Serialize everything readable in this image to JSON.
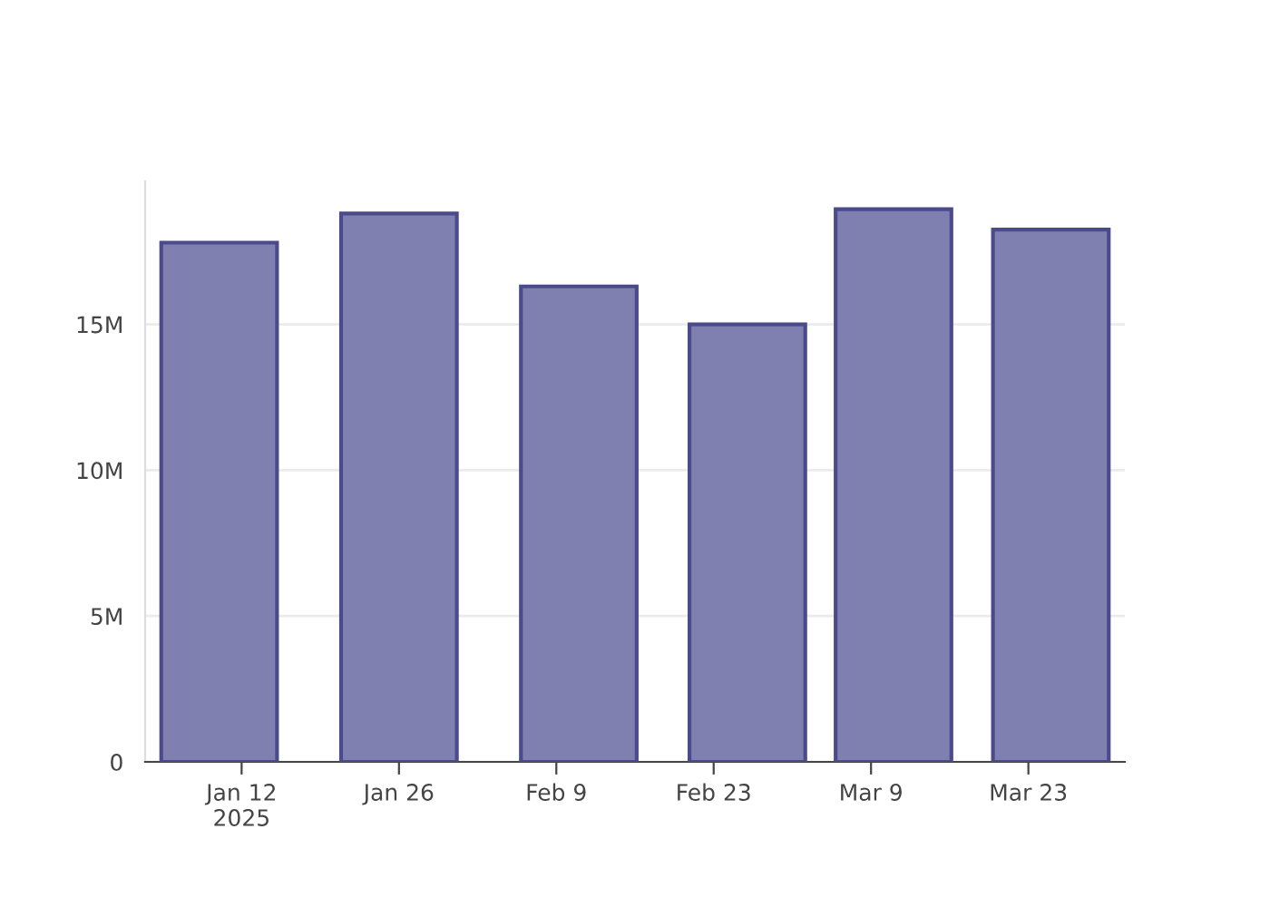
{
  "chart_data": {
    "type": "bar",
    "x": [
      "2025-01-10",
      "2025-01-26",
      "2025-02-11",
      "2025-02-26",
      "2025-03-11",
      "2025-03-25"
    ],
    "values": [
      17800000,
      18800000,
      16300000,
      15000000,
      18950000,
      18250000
    ],
    "color": "#7f7fb0",
    "xlim": [
      "2025-01-03T10:00",
      "2025-03-31T14:00"
    ],
    "xticks": [
      {
        "value": "2025-01-12",
        "label": "Jan 12\n2025"
      },
      {
        "value": "2025-01-26",
        "label": "Jan 26"
      },
      {
        "value": "2025-02-09",
        "label": "Feb 9"
      },
      {
        "value": "2025-02-23",
        "label": "Feb 23"
      },
      {
        "value": "2025-03-09",
        "label": "Mar 9"
      },
      {
        "value": "2025-03-23",
        "label": "Mar 23"
      }
    ],
    "yticks": [
      {
        "value": 0,
        "label": "0"
      },
      {
        "value": 5000000,
        "label": "5M"
      },
      {
        "value": 10000000,
        "label": "10M"
      },
      {
        "value": 15000000,
        "label": "15M"
      }
    ],
    "ylim": [
      0,
      19900000
    ],
    "grid": "y"
  }
}
